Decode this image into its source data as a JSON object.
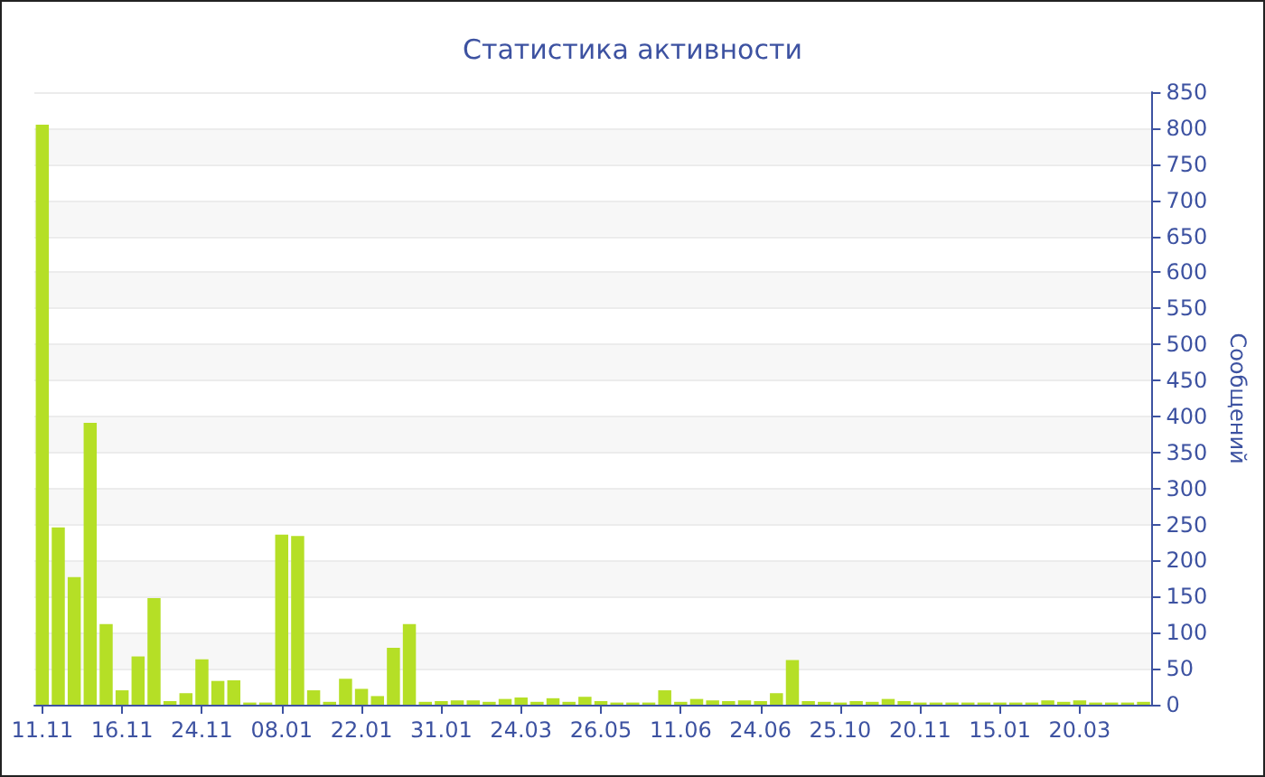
{
  "chart_data": {
    "type": "bar",
    "title": "Статистика активности",
    "ylabel": "Сообщений",
    "categories": [
      "11.11",
      null,
      null,
      null,
      null,
      "16.11",
      null,
      null,
      null,
      null,
      "24.11",
      null,
      null,
      null,
      null,
      "08.01",
      null,
      null,
      null,
      null,
      "22.01",
      null,
      null,
      null,
      null,
      "31.01",
      null,
      null,
      null,
      null,
      "24.03",
      null,
      null,
      null,
      null,
      "26.05",
      null,
      null,
      null,
      null,
      "11.06",
      null,
      null,
      null,
      null,
      "24.06",
      null,
      null,
      null,
      null,
      "25.10",
      null,
      null,
      null,
      null,
      "20.11",
      null,
      null,
      null,
      null,
      "15.01",
      null,
      null,
      null,
      null,
      "20.03",
      null,
      null,
      null,
      null
    ],
    "values": [
      805,
      246,
      177,
      391,
      112,
      20,
      67,
      148,
      5,
      16,
      63,
      33,
      34,
      3,
      3,
      236,
      234,
      20,
      4,
      36,
      22,
      12,
      79,
      112,
      4,
      5,
      6,
      6,
      4,
      8,
      10,
      4,
      9,
      4,
      11,
      5,
      3,
      3,
      3,
      20,
      4,
      8,
      6,
      5,
      6,
      5,
      16,
      62,
      5,
      4,
      3,
      5,
      4,
      8,
      5,
      3,
      3,
      3,
      3,
      3,
      3,
      3,
      3,
      6,
      4,
      6,
      3,
      3,
      3,
      4
    ],
    "color": "#b5df26",
    "ylim": [
      0,
      850
    ],
    "yticks": [
      0,
      50,
      100,
      150,
      200,
      250,
      300,
      350,
      400,
      450,
      500,
      550,
      600,
      650,
      700,
      750,
      800,
      850
    ],
    "grid": "y"
  }
}
